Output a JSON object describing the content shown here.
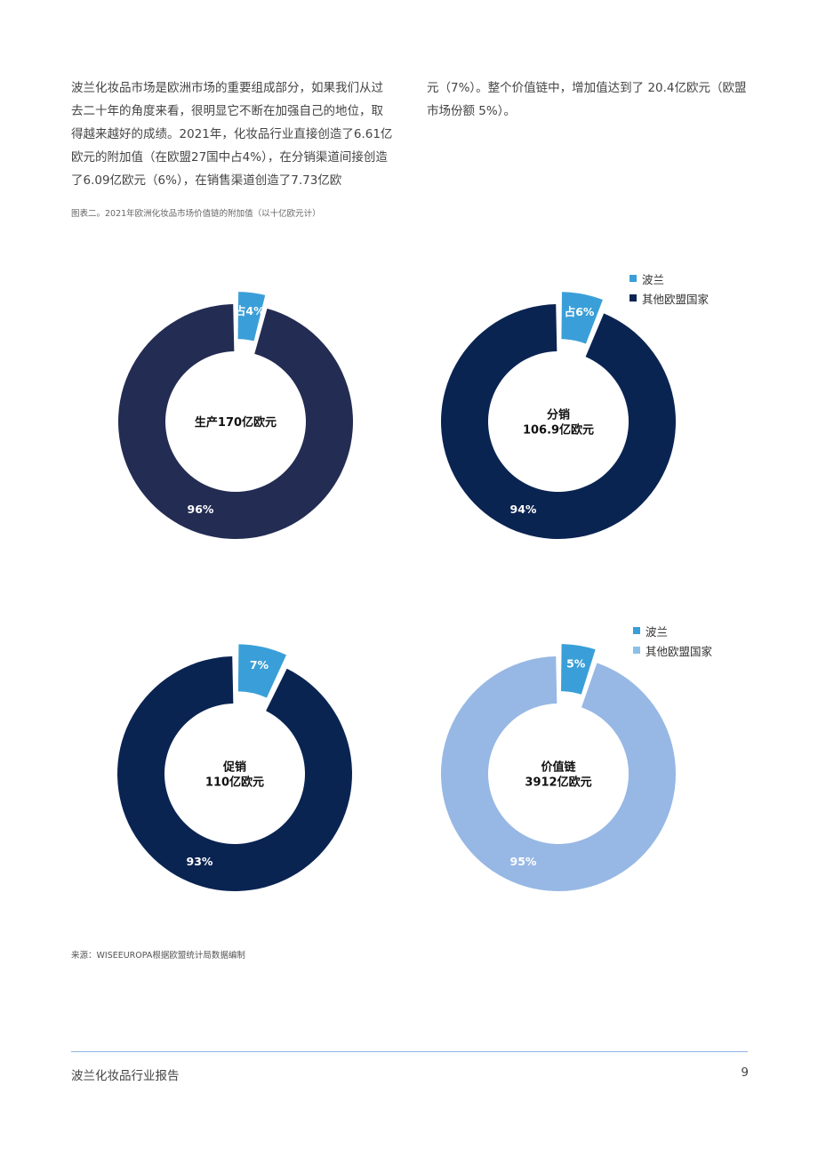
{
  "text": {
    "left_paragraph": "波兰化妆品市场是欧洲市场的重要组成部分，如果我们从过去二十年的角度来看，很明显它不断在加强自己的地位，取得越来越好的成绩。2021年，化妆品行业直接创造了6.61亿欧元的附加值（在欧盟27国中占4%），在分销渠道间接创造了6.09亿欧元（6%），在销售渠道创造了7.73亿欧",
    "right_paragraph": "元（7%）。整个价值链中，增加值达到了 20.4亿欧元（欧盟市场份额 5%）。",
    "figure_caption": "图表二。2021年欧洲化妆品市场价值链的附加值（以十亿欧元计）",
    "source": "来源：WISEEUROPA根据欧盟统计局数据编制",
    "footer_title": "波兰化妆品行业报告",
    "page_number": "9"
  },
  "legends": [
    {
      "items": [
        {
          "label": "波兰",
          "color": "#3a9fd8"
        },
        {
          "label": "其他欧盟国家",
          "color": "#0a2452"
        }
      ]
    },
    {
      "items": [
        {
          "label": "波兰",
          "color": "#3a9fd8"
        },
        {
          "label": "其他欧盟国家",
          "color": "#8cc0e8"
        }
      ]
    }
  ],
  "chart_data": [
    {
      "type": "pie",
      "center_label": [
        "生产170亿欧元"
      ],
      "categories": [
        "波兰",
        "其他欧盟国家"
      ],
      "values": [
        4,
        96
      ],
      "data_labels": [
        "占4%",
        "96%"
      ],
      "colors": [
        "#3a9fd8",
        "#232c52"
      ]
    },
    {
      "type": "pie",
      "center_label": [
        "分销",
        "106.9亿欧元"
      ],
      "categories": [
        "波兰",
        "其他欧盟国家"
      ],
      "values": [
        6,
        94
      ],
      "data_labels": [
        "占6%",
        "94%"
      ],
      "colors": [
        "#3a9fd8",
        "#0a2452"
      ]
    },
    {
      "type": "pie",
      "center_label": [
        "促销",
        "110亿欧元"
      ],
      "categories": [
        "波兰",
        "其他欧盟国家"
      ],
      "values": [
        7,
        93
      ],
      "data_labels": [
        "7%",
        "93%"
      ],
      "colors": [
        "#3a9fd8",
        "#0a2452"
      ]
    },
    {
      "type": "pie",
      "center_label": [
        "价值链",
        "3912亿欧元"
      ],
      "categories": [
        "波兰",
        "其他欧盟国家"
      ],
      "values": [
        5,
        95
      ],
      "data_labels": [
        "5%",
        "95%"
      ],
      "colors": [
        "#3a9fd8",
        "#97b8e4"
      ]
    }
  ]
}
